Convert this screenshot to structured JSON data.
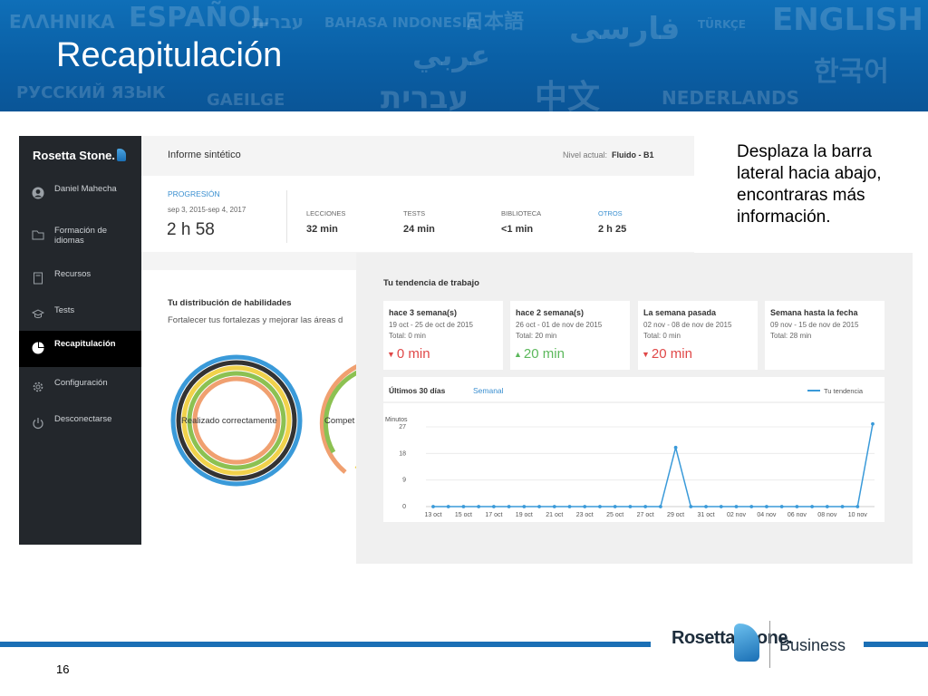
{
  "slide": {
    "title": "Recapitulación",
    "banner_words": [
      "ΕΛΛΗΝΙΚΑ",
      "ESPAÑOL",
      "עברית",
      "BAHASA INDONESIA",
      "日本語",
      "فارسی",
      "TÜRKÇE",
      "ENGLISH",
      "عربي",
      "한국어",
      "РУССКИЙ ЯЗЫК",
      "GAEILGE",
      "עברית",
      "中文",
      "NEDERLANDS"
    ],
    "note": "Desplaza la barra lateral hacia abajo, encontraras más información.",
    "page_number": "16",
    "brand_rosetta": "Rosetta Stone.",
    "brand_business": "Business",
    "brand_color": "#1a6fb5"
  },
  "app": {
    "logo": "Rosetta Stone.",
    "sidebar": [
      {
        "label": "Daniel Mahecha",
        "icon": "user-icon"
      },
      {
        "label": "Formación de idiomas",
        "icon": "folder-icon"
      },
      {
        "label": "Recursos",
        "icon": "document-icon"
      },
      {
        "label": "Tests",
        "icon": "graduation-cap-icon"
      },
      {
        "label": "Recapitulación",
        "icon": "pie-chart-icon",
        "active": true
      },
      {
        "label": "Configuración",
        "icon": "gear-icon"
      },
      {
        "label": "Desconectarse",
        "icon": "power-icon"
      }
    ],
    "header": {
      "title": "Informe sintético",
      "level_label": "Nivel actual:",
      "level_value": "Fluido - B1"
    },
    "progress": {
      "label": "PROGRESIÓN",
      "dates": "sep 3, 2015-sep 4, 2017",
      "total": "2 h 58"
    },
    "stats": [
      {
        "label": "LECCIONES",
        "value": "32 min"
      },
      {
        "label": "TESTS",
        "value": "24 min"
      },
      {
        "label": "BIBLIOTECA",
        "value": "<1 min"
      },
      {
        "label": "OTROS",
        "value": "2 h 25",
        "highlight": true
      }
    ],
    "skills": {
      "title": "Tu distribución de habilidades",
      "subtitle": "Fortalecer tus fortalezas y mejorar las áreas d",
      "donut1_label": "Realizado correctamente",
      "donut2_label": "Compet",
      "colors": [
        "#3a9ad9",
        "#333333",
        "#f1d24b",
        "#8cc152",
        "#f0a070"
      ]
    }
  },
  "trend": {
    "title": "Tu tendencia de trabajo",
    "cards": [
      {
        "heading": "hace 3 semana(s)",
        "dates": "19 oct - 25 de oct de 2015",
        "total": "Total: 0 min",
        "change": "0 min",
        "direction": "down"
      },
      {
        "heading": "hace 2 semana(s)",
        "dates": "26 oct - 01 de nov de 2015",
        "total": "Total: 20 min",
        "change": "20 min",
        "direction": "up"
      },
      {
        "heading": "La semana pasada",
        "dates": "02 nov - 08 de nov de 2015",
        "total": "Total: 0 min",
        "change": "20 min",
        "direction": "down"
      },
      {
        "heading": "Semana hasta la fecha",
        "dates": "09 nov - 15 de nov de 2015",
        "total": "Total: 28 min",
        "change": "",
        "direction": "none"
      }
    ],
    "tab_active": "Últimos 30 días",
    "tab_other": "Semanal",
    "legend": "Tu tendencia"
  },
  "chart_data": {
    "type": "line",
    "title": "",
    "ylabel": "Minutos",
    "xlabel": "",
    "ylim": [
      0,
      27
    ],
    "yticks": [
      0,
      9,
      18,
      27
    ],
    "x_tick_labels": [
      "13 oct",
      "15 oct",
      "17 oct",
      "19 oct",
      "21 oct",
      "23 oct",
      "25 oct",
      "27 oct",
      "29 oct",
      "31 oct",
      "02 nov",
      "04 nov",
      "06 nov",
      "08 nov",
      "10 nov"
    ],
    "x": [
      "13 oct",
      "14 oct",
      "15 oct",
      "16 oct",
      "17 oct",
      "18 oct",
      "19 oct",
      "20 oct",
      "21 oct",
      "22 oct",
      "23 oct",
      "24 oct",
      "25 oct",
      "26 oct",
      "27 oct",
      "28 oct",
      "29 oct",
      "30 oct",
      "31 oct",
      "01 nov",
      "02 nov",
      "03 nov",
      "04 nov",
      "05 nov",
      "06 nov",
      "07 nov",
      "08 nov",
      "09 nov",
      "10 nov",
      "11 nov"
    ],
    "series": [
      {
        "name": "Tu tendencia",
        "color": "#3a9ad9",
        "values": [
          0,
          0,
          0,
          0,
          0,
          0,
          0,
          0,
          0,
          0,
          0,
          0,
          0,
          0,
          0,
          0,
          20,
          0,
          0,
          0,
          0,
          0,
          0,
          0,
          0,
          0,
          0,
          0,
          0,
          28
        ]
      }
    ],
    "grid": true,
    "legend_position": "top-right"
  }
}
